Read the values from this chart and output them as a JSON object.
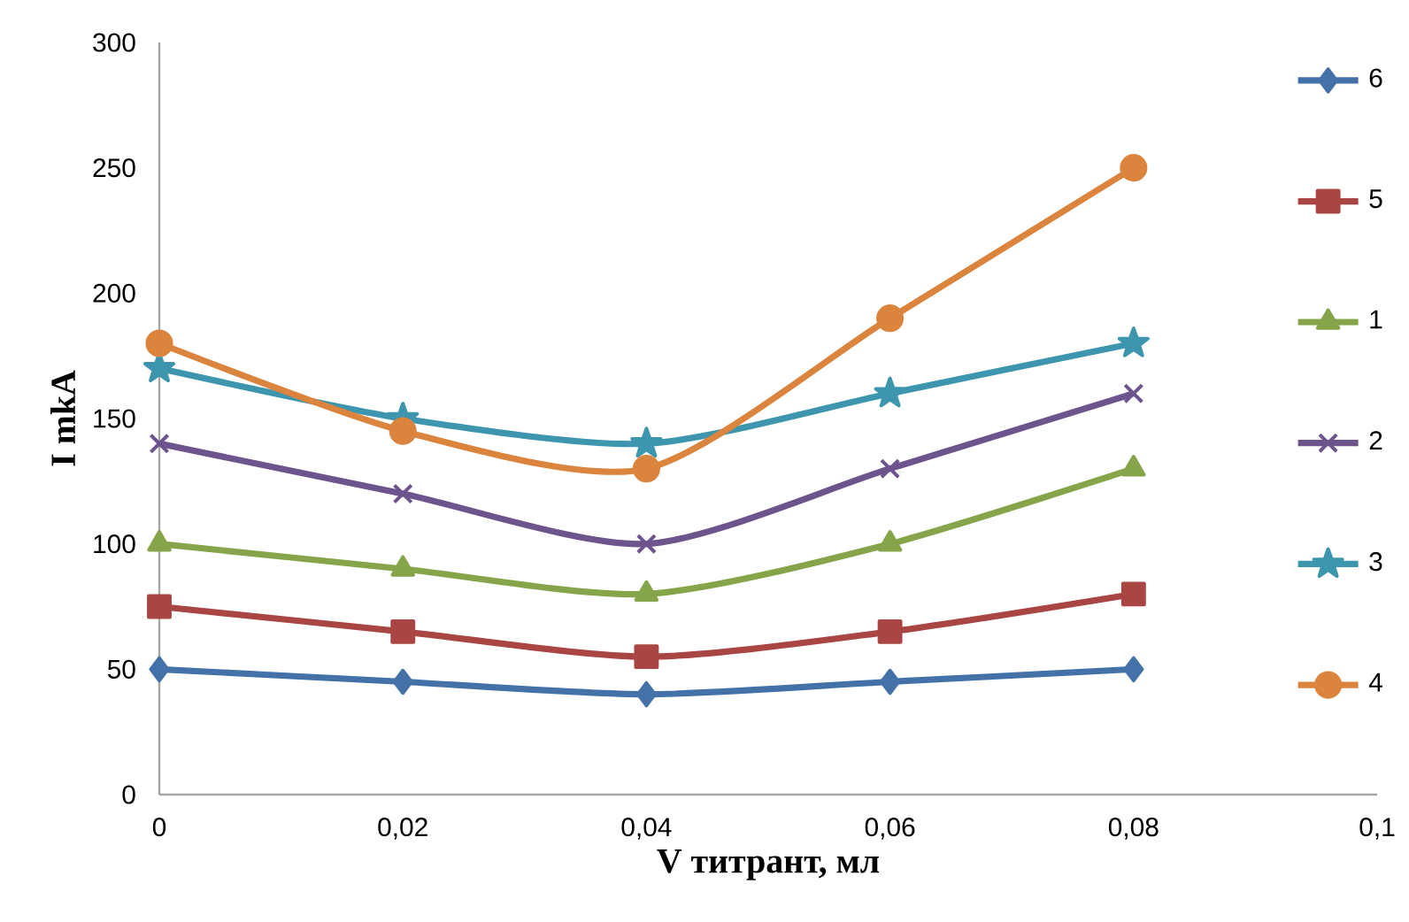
{
  "chart_data": {
    "type": "line",
    "xlabel": "V титрант, мл",
    "ylabel": "I mkA",
    "x": [
      0,
      0.02,
      0.04,
      0.06,
      0.08
    ],
    "series": [
      {
        "name": "6",
        "color": "#4472a8",
        "marker": "diamond",
        "values": [
          50,
          45,
          40,
          45,
          50
        ]
      },
      {
        "name": "5",
        "color": "#a94643",
        "marker": "square",
        "values": [
          75,
          65,
          55,
          65,
          80
        ]
      },
      {
        "name": "1",
        "color": "#86a44a",
        "marker": "triangle",
        "values": [
          100,
          90,
          80,
          100,
          130
        ]
      },
      {
        "name": "2",
        "color": "#6e548d",
        "marker": "cross",
        "values": [
          140,
          120,
          100,
          130,
          160
        ]
      },
      {
        "name": "3",
        "color": "#3d96ae",
        "marker": "star",
        "values": [
          170,
          150,
          140,
          160,
          180
        ]
      },
      {
        "name": "4",
        "color": "#db843d",
        "marker": "circle",
        "values": [
          180,
          145,
          130,
          190,
          250
        ]
      }
    ],
    "xlim": [
      0,
      0.1
    ],
    "ylim": [
      0,
      300
    ],
    "xticks": [
      0,
      {
        "value": 0.02,
        "label": "0,02"
      },
      {
        "value": 0.04,
        "label": "0,04"
      },
      {
        "value": 0.06,
        "label": "0,06"
      },
      {
        "value": 0.08,
        "label": "0,08"
      },
      {
        "value": 0.1,
        "label": "0,1"
      }
    ],
    "yticks": [
      0,
      50,
      100,
      150,
      200,
      250,
      300
    ],
    "legend": "right",
    "grid": false
  }
}
